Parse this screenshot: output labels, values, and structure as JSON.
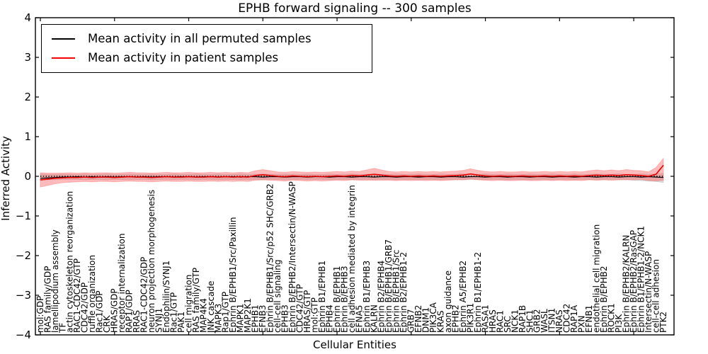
{
  "title": "EPHB forward signaling -- 300 samples",
  "axes": {
    "xlabel": "Cellular Entities",
    "ylabel": "Inferred Activity",
    "yticks": [
      -4,
      -3,
      -2,
      -1,
      0,
      1,
      2,
      3,
      4
    ],
    "ylim": [
      -4,
      4
    ],
    "xtick_every": 10
  },
  "legend": {
    "position": "upper left",
    "entries": [
      {
        "label": "Mean activity in all permuted samples",
        "color": "#000000"
      },
      {
        "label": "Mean activity in patient samples",
        "color": "#ff0000"
      }
    ]
  },
  "colors": {
    "permuted_line": "#000000",
    "patient_line": "#e60000",
    "patient_band": "#ff4c4c",
    "permuted_band": "#999999",
    "zero_line": "#000000",
    "frame": "#000000"
  },
  "chart_data": {
    "type": "line",
    "title": "EPHB forward signaling -- 300 samples",
    "xlabel": "Cellular Entities",
    "ylabel": "Inferred Activity",
    "ylim": [
      -4,
      4
    ],
    "grid": false,
    "legend_position": "upper left",
    "zero_line": {
      "y": 0,
      "style": "dotted",
      "color": "#000000"
    },
    "categories": [
      "mol:GDP",
      "RAS family/GDP",
      "lamellipodium assembly",
      "TF",
      "actin cytoskeleton reorganization",
      "RAC1-CDC42/GTP",
      "CDC42/GDP",
      "ruffle organization",
      "Rac1/GDP",
      "CRK",
      "HRAS/GDP",
      "receptor internalization",
      "RAP1/GDP",
      "RRAS",
      "RAC1-CDC42/GDP",
      "neuron projection morphogenesis",
      "SYNJ1",
      "Endophilin/SYNJ1",
      "Rac1/GTP",
      "PAK1",
      "cell migration",
      "RAS family/GTP",
      "MAP4K4",
      "JNK cascade",
      "MAPK3",
      "Rap1/GTP",
      "Ephrin B/EPHB1/Src/Paxillin",
      "MAPK1",
      "MAP2K1",
      "EPHB1",
      "EFNB3",
      "Ephrin B/EPHB1/Src/p52 SHC/GRB2",
      "cell-cell signaling",
      "EPHB3",
      "Ephrin B/EPHB2/Intersectin/N-WASP",
      "CDC42/GTP",
      "HRAS/GTP",
      "mol:GTP",
      "Ephrin B1/EPHB1",
      "EPHB4",
      "Ephrin B/EPHB1",
      "Ephrin B/EPHB3",
      "cell adhesion mediated by integrin",
      "EFNA5",
      "Ephrin B1/EPHB3",
      "KALRN",
      "Ephrin B2/EPHB4",
      "Ephrin B/EPHB1/GRB7",
      "Ephrin B/EPHB1/Src",
      "Ephrin B2/EPHB1-2",
      "GRB7",
      "EFNB2",
      "DNM1",
      "PIK3CA",
      "KRAS",
      "axon guidance",
      "EPHB2",
      "Ephrin A5/EPHB2",
      "PIK3R1",
      "Ephrin B1/EPHB1-2",
      "RASA1",
      "HRAS",
      "RAC1",
      "SRC",
      "NCK1",
      "RAP1B",
      "SHC1",
      "GRB2",
      "WASL",
      "ITSN1",
      "NRAS",
      "CDC42",
      "RAP1A",
      "PXN",
      "EFNB1",
      "endothelial cell migration",
      "Ephrin B/EPHB2",
      "ROCK1",
      "PI3K",
      "Ephrin B/EPHB2/KALRN",
      "Ephrin B/EPHB2/RasGAP",
      "Ephrin B1/EPHB1-2/NCK1",
      "Intersectin/N-WASP",
      "cell-cell adhesion",
      "PTK2"
    ],
    "series": [
      {
        "name": "Mean activity in all permuted samples",
        "color": "#000000",
        "values": [
          -0.05,
          -0.04,
          -0.03,
          -0.02,
          -0.02,
          -0.01,
          -0.02,
          -0.01,
          -0.02,
          -0.01,
          -0.02,
          -0.01,
          -0.01,
          -0.02,
          -0.01,
          -0.02,
          -0.01,
          -0.01,
          -0.02,
          -0.01,
          -0.01,
          -0.02,
          -0.01,
          -0.01,
          -0.02,
          -0.01,
          -0.01,
          -0.02,
          -0.01,
          -0.01,
          -0.02,
          -0.01,
          -0.01,
          -0.02,
          -0.01,
          -0.01,
          -0.02,
          -0.01,
          -0.01,
          -0.02,
          -0.01,
          -0.01,
          -0.02,
          -0.01,
          -0.01,
          -0.02,
          -0.01,
          -0.01,
          -0.02,
          -0.01,
          -0.01,
          -0.02,
          -0.01,
          -0.01,
          -0.02,
          -0.01,
          -0.01,
          -0.02,
          -0.01,
          -0.01,
          -0.02,
          -0.01,
          -0.01,
          -0.02,
          -0.01,
          -0.01,
          -0.02,
          -0.01,
          -0.01,
          -0.02,
          -0.01,
          -0.01,
          -0.02,
          -0.01,
          -0.01,
          -0.02,
          -0.01,
          -0.01,
          -0.02,
          -0.01,
          -0.01,
          -0.02,
          -0.01,
          -0.02,
          -0.03
        ]
      },
      {
        "name": "Mean activity in patient samples",
        "color": "#e60000",
        "values": [
          -0.09,
          -0.07,
          -0.05,
          -0.04,
          -0.03,
          -0.03,
          -0.02,
          -0.03,
          -0.02,
          -0.02,
          -0.03,
          -0.02,
          -0.01,
          -0.02,
          -0.02,
          -0.03,
          -0.02,
          -0.01,
          -0.02,
          -0.02,
          -0.01,
          -0.02,
          -0.02,
          -0.01,
          -0.02,
          -0.01,
          -0.02,
          -0.01,
          -0.02,
          0.02,
          0.04,
          0.02,
          0.0,
          -0.01,
          0.01,
          0.0,
          -0.01,
          0.0,
          -0.01,
          0.0,
          0.01,
          0.0,
          0.02,
          0.01,
          0.03,
          0.05,
          0.03,
          0.01,
          0.0,
          0.01,
          0.0,
          0.01,
          0.0,
          0.01,
          0.0,
          0.01,
          0.02,
          0.03,
          0.06,
          0.03,
          0.01,
          0.0,
          0.01,
          0.0,
          0.0,
          0.01,
          0.0,
          0.0,
          0.01,
          0.0,
          0.01,
          0.0,
          0.01,
          0.0,
          0.02,
          0.03,
          0.02,
          0.03,
          0.02,
          0.04,
          0.03,
          0.02,
          0.0,
          0.05,
          0.28
        ]
      }
    ],
    "bands": [
      {
        "name": "permuted activity range",
        "color": "#999999",
        "alpha": 0.35,
        "upper": [
          0.06,
          0.05,
          0.05,
          0.06,
          0.05,
          0.05,
          0.06,
          0.05,
          0.05,
          0.06,
          0.05,
          0.05,
          0.06,
          0.05,
          0.05,
          0.06,
          0.05,
          0.05,
          0.06,
          0.05,
          0.05,
          0.06,
          0.05,
          0.05,
          0.06,
          0.05,
          0.05,
          0.06,
          0.05,
          0.05,
          0.06,
          0.05,
          0.05,
          0.06,
          0.05,
          0.05,
          0.06,
          0.05,
          0.05,
          0.06,
          0.05,
          0.05,
          0.06,
          0.05,
          0.05,
          0.06,
          0.05,
          0.05,
          0.06,
          0.05,
          0.05,
          0.06,
          0.05,
          0.05,
          0.06,
          0.05,
          0.05,
          0.06,
          0.05,
          0.05,
          0.06,
          0.05,
          0.05,
          0.06,
          0.05,
          0.05,
          0.06,
          0.05,
          0.05,
          0.06,
          0.05,
          0.05,
          0.06,
          0.05,
          0.05,
          0.06,
          0.05,
          0.05,
          0.06,
          0.05,
          0.05,
          0.06,
          0.05,
          0.06,
          0.07
        ],
        "lower": [
          -0.1,
          -0.09,
          -0.08,
          -0.08,
          -0.08,
          -0.08,
          -0.09,
          -0.08,
          -0.08,
          -0.09,
          -0.08,
          -0.08,
          -0.09,
          -0.08,
          -0.08,
          -0.09,
          -0.08,
          -0.08,
          -0.09,
          -0.08,
          -0.08,
          -0.09,
          -0.08,
          -0.08,
          -0.09,
          -0.08,
          -0.08,
          -0.09,
          -0.08,
          -0.08,
          -0.09,
          -0.08,
          -0.08,
          -0.09,
          -0.08,
          -0.08,
          -0.09,
          -0.08,
          -0.08,
          -0.09,
          -0.08,
          -0.08,
          -0.09,
          -0.08,
          -0.08,
          -0.09,
          -0.08,
          -0.08,
          -0.09,
          -0.08,
          -0.08,
          -0.09,
          -0.08,
          -0.08,
          -0.09,
          -0.08,
          -0.08,
          -0.09,
          -0.08,
          -0.08,
          -0.09,
          -0.08,
          -0.08,
          -0.09,
          -0.08,
          -0.08,
          -0.09,
          -0.08,
          -0.08,
          -0.09,
          -0.08,
          -0.08,
          -0.09,
          -0.08,
          -0.08,
          -0.09,
          -0.08,
          -0.08,
          -0.09,
          -0.08,
          -0.1,
          -0.11,
          -0.12,
          -0.13,
          -0.16
        ]
      },
      {
        "name": "patient activity range",
        "color": "#ff4c4c",
        "alpha": 0.38,
        "upper": [
          0.09,
          0.08,
          0.08,
          0.08,
          0.09,
          0.08,
          0.09,
          0.08,
          0.09,
          0.09,
          0.08,
          0.09,
          0.1,
          0.09,
          0.09,
          0.08,
          0.09,
          0.1,
          0.09,
          0.09,
          0.1,
          0.09,
          0.09,
          0.1,
          0.09,
          0.1,
          0.09,
          0.1,
          0.09,
          0.14,
          0.17,
          0.14,
          0.11,
          0.1,
          0.12,
          0.11,
          0.1,
          0.11,
          0.1,
          0.11,
          0.12,
          0.11,
          0.13,
          0.12,
          0.16,
          0.2,
          0.16,
          0.12,
          0.11,
          0.12,
          0.11,
          0.12,
          0.11,
          0.12,
          0.11,
          0.12,
          0.13,
          0.15,
          0.19,
          0.15,
          0.12,
          0.11,
          0.12,
          0.11,
          0.11,
          0.12,
          0.11,
          0.11,
          0.12,
          0.11,
          0.12,
          0.11,
          0.12,
          0.11,
          0.14,
          0.16,
          0.14,
          0.16,
          0.14,
          0.17,
          0.15,
          0.14,
          0.11,
          0.22,
          0.45
        ],
        "lower": [
          -0.27,
          -0.23,
          -0.19,
          -0.16,
          -0.15,
          -0.14,
          -0.13,
          -0.14,
          -0.13,
          -0.13,
          -0.14,
          -0.13,
          -0.12,
          -0.13,
          -0.13,
          -0.14,
          -0.13,
          -0.12,
          -0.13,
          -0.13,
          -0.12,
          -0.13,
          -0.13,
          -0.12,
          -0.13,
          -0.12,
          -0.13,
          -0.12,
          -0.13,
          -0.1,
          -0.09,
          -0.1,
          -0.11,
          -0.12,
          -0.1,
          -0.11,
          -0.12,
          -0.11,
          -0.12,
          -0.11,
          -0.1,
          -0.11,
          -0.09,
          -0.1,
          -0.1,
          -0.1,
          -0.1,
          -0.1,
          -0.11,
          -0.1,
          -0.11,
          -0.1,
          -0.11,
          -0.1,
          -0.11,
          -0.1,
          -0.09,
          -0.09,
          -0.07,
          -0.09,
          -0.1,
          -0.11,
          -0.1,
          -0.11,
          -0.11,
          -0.1,
          -0.11,
          -0.11,
          -0.1,
          -0.11,
          -0.1,
          -0.11,
          -0.1,
          -0.11,
          -0.09,
          -0.1,
          -0.09,
          -0.1,
          -0.09,
          -0.09,
          -0.09,
          -0.08,
          -0.11,
          -0.12,
          -0.1
        ]
      }
    ]
  }
}
